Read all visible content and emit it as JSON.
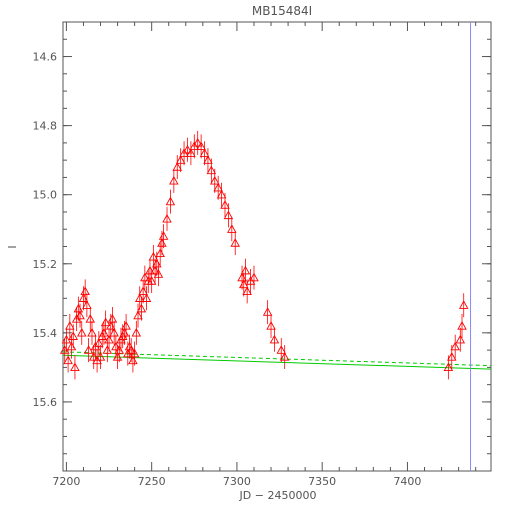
{
  "chart_data": {
    "type": "scatter",
    "title": "MB15484I",
    "xlabel": "JD − 2450000",
    "ylabel": "I",
    "xlim": [
      7198,
      7449
    ],
    "ylim": [
      15.8,
      14.5
    ],
    "y_inverted": true,
    "x_ticks": [
      7200,
      7250,
      7300,
      7350,
      7400
    ],
    "x_tick_labels": [
      "7200",
      "7250",
      "7300",
      "7350",
      "7400"
    ],
    "y_ticks": [
      14.6,
      14.8,
      15.0,
      15.2,
      15.4,
      15.6
    ],
    "y_tick_labels": [
      "14.6",
      "14.8",
      "15.0",
      "15.2",
      "15.4",
      "15.6"
    ],
    "grid": false,
    "legend": "none",
    "vertical_line": {
      "x": 7437,
      "color": "#8888ff"
    },
    "baseline": {
      "color": "#00cc00",
      "solid": {
        "x": [
          7198,
          7449
        ],
        "y": [
          15.465,
          15.505
        ]
      },
      "dashed": {
        "x": [
          7198,
          7449
        ],
        "y": [
          15.455,
          15.495
        ]
      }
    },
    "series": [
      {
        "marker": "open-triangle",
        "color": "#ff0000",
        "x": [
          7199,
          7200,
          7201,
          7202,
          7203,
          7204,
          7205,
          7206,
          7207,
          7208,
          7209,
          7210,
          7211,
          7212,
          7213,
          7214,
          7215,
          7216,
          7217,
          7218,
          7219,
          7220,
          7221,
          7222,
          7223,
          7224,
          7225,
          7226,
          7227,
          7228,
          7229,
          7230,
          7231,
          7232,
          7233,
          7234,
          7235,
          7236,
          7237,
          7238,
          7239,
          7240,
          7241,
          7242,
          7243,
          7244,
          7245,
          7246,
          7247,
          7248,
          7249,
          7250,
          7251,
          7252,
          7253,
          7254,
          7255,
          7256,
          7257,
          7259,
          7261,
          7263,
          7265,
          7267,
          7269,
          7271,
          7273,
          7275,
          7277,
          7279,
          7281,
          7283,
          7285,
          7287,
          7289,
          7291,
          7293,
          7295,
          7297,
          7299,
          7303,
          7304,
          7305,
          7306,
          7308,
          7310,
          7318,
          7320,
          7322,
          7326,
          7328,
          7424,
          7426,
          7428,
          7431,
          7432,
          7433
        ],
        "y": [
          15.45,
          15.42,
          15.48,
          15.38,
          15.44,
          15.41,
          15.5,
          15.36,
          15.33,
          15.35,
          15.4,
          15.3,
          15.28,
          15.32,
          15.45,
          15.36,
          15.4,
          15.47,
          15.44,
          15.48,
          15.43,
          15.47,
          15.41,
          15.4,
          15.37,
          15.45,
          15.42,
          15.38,
          15.36,
          15.4,
          15.44,
          15.47,
          15.45,
          15.42,
          15.41,
          15.4,
          15.38,
          15.46,
          15.44,
          15.45,
          15.48,
          15.46,
          15.4,
          15.35,
          15.3,
          15.33,
          15.28,
          15.24,
          15.3,
          15.25,
          15.22,
          15.25,
          15.18,
          15.22,
          15.2,
          15.23,
          15.17,
          15.14,
          15.12,
          15.07,
          15.02,
          14.96,
          14.92,
          14.9,
          14.88,
          14.87,
          14.88,
          14.86,
          14.85,
          14.86,
          14.88,
          14.9,
          14.93,
          14.96,
          14.98,
          15.0,
          15.03,
          15.06,
          15.1,
          15.14,
          15.24,
          15.26,
          15.22,
          15.28,
          15.25,
          15.24,
          15.34,
          15.38,
          15.42,
          15.45,
          15.47,
          15.5,
          15.47,
          15.44,
          15.42,
          15.38,
          15.32
        ]
      }
    ]
  }
}
